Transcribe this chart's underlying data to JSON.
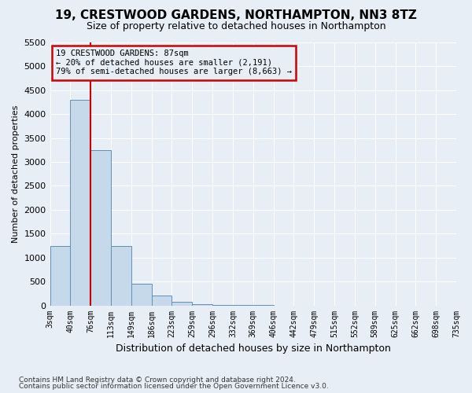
{
  "title": "19, CRESTWOOD GARDENS, NORTHAMPTON, NN3 8TZ",
  "subtitle": "Size of property relative to detached houses in Northampton",
  "xlabel": "Distribution of detached houses by size in Northampton",
  "ylabel": "Number of detached properties",
  "footer_line1": "Contains HM Land Registry data © Crown copyright and database right 2024.",
  "footer_line2": "Contains public sector information licensed under the Open Government Licence v3.0.",
  "annotation_line1": "19 CRESTWOOD GARDENS: 87sqm",
  "annotation_line2": "← 20% of detached houses are smaller (2,191)",
  "annotation_line3": "79% of semi-detached houses are larger (8,663) →",
  "property_size_bin": 2,
  "bar_color": "#c5d9ea",
  "bar_edge_color": "#6090b8",
  "redline_color": "#cc0000",
  "annotation_box_color": "#cc0000",
  "background_color": "#e8eef5",
  "grid_color": "#ffffff",
  "ylim": [
    0,
    5500
  ],
  "bar_heights": [
    1250,
    4300,
    3250,
    1250,
    450,
    200,
    75,
    30,
    5,
    2,
    1,
    0,
    0,
    0,
    0,
    0,
    0,
    0,
    0,
    0
  ],
  "tick_labels": [
    "3sqm",
    "40sqm",
    "76sqm",
    "113sqm",
    "149sqm",
    "186sqm",
    "223sqm",
    "259sqm",
    "296sqm",
    "332sqm",
    "369sqm",
    "406sqm",
    "442sqm",
    "479sqm",
    "515sqm",
    "552sqm",
    "589sqm",
    "625sqm",
    "662sqm",
    "698sqm",
    "735sqm"
  ],
  "yticks": [
    0,
    500,
    1000,
    1500,
    2000,
    2500,
    3000,
    3500,
    4000,
    4500,
    5000,
    5500
  ],
  "num_bars": 20
}
